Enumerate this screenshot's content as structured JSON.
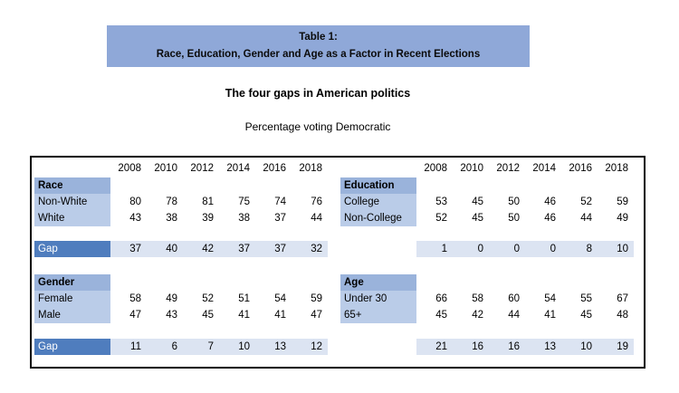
{
  "title_banner": {
    "line1": "Table 1:",
    "line2": "Race, Education, Gender and Age as a Factor in Recent Elections"
  },
  "subtitle": "The four gaps in American politics",
  "caption": "Percentage voting Democratic",
  "colors": {
    "banner": "#8FA8D8",
    "section_header": "#9AB3DB",
    "label_cell": "#BACCE8",
    "gap_label": "#4F7DBE",
    "gap_label_text": "#FFFFFF",
    "gap_value_bg": "#DCE4F2",
    "border": "#000000",
    "text": "#000000"
  },
  "chart_data": {
    "type": "table",
    "title": "Table 1: Race, Education, Gender and Age as a Factor in Recent Elections",
    "subtitle": "The four gaps in American politics",
    "units": "Percentage voting Democratic",
    "years": [
      "2008",
      "2010",
      "2012",
      "2014",
      "2016",
      "2018"
    ],
    "panels": [
      {
        "position": "left",
        "sections": [
          {
            "header": "Race",
            "rows": [
              {
                "label": "Non-White",
                "values": [
                  80,
                  78,
                  81,
                  75,
                  74,
                  76
                ]
              },
              {
                "label": "White",
                "values": [
                  43,
                  38,
                  39,
                  38,
                  37,
                  44
                ]
              }
            ],
            "gap": {
              "label": "Gap",
              "values": [
                37,
                40,
                42,
                37,
                37,
                32
              ]
            }
          },
          {
            "header": "Gender",
            "rows": [
              {
                "label": "Female",
                "values": [
                  58,
                  49,
                  52,
                  51,
                  54,
                  59
                ]
              },
              {
                "label": "Male",
                "values": [
                  47,
                  43,
                  45,
                  41,
                  41,
                  47
                ]
              }
            ],
            "gap": {
              "label": "Gap",
              "values": [
                11,
                6,
                7,
                10,
                13,
                12
              ]
            }
          }
        ]
      },
      {
        "position": "right",
        "sections": [
          {
            "header": "Education",
            "rows": [
              {
                "label": "College",
                "values": [
                  53,
                  45,
                  50,
                  46,
                  52,
                  59
                ]
              },
              {
                "label": "Non-College",
                "values": [
                  52,
                  45,
                  50,
                  46,
                  44,
                  49
                ]
              }
            ],
            "gap": {
              "label": "",
              "values": [
                1,
                0,
                0,
                0,
                8,
                10
              ]
            }
          },
          {
            "header": "Age",
            "rows": [
              {
                "label": "Under 30",
                "values": [
                  66,
                  58,
                  60,
                  54,
                  55,
                  67
                ]
              },
              {
                "label": "65+",
                "values": [
                  45,
                  42,
                  44,
                  41,
                  45,
                  48
                ]
              }
            ],
            "gap": {
              "label": "",
              "values": [
                21,
                16,
                16,
                13,
                10,
                19
              ]
            }
          }
        ]
      }
    ]
  }
}
